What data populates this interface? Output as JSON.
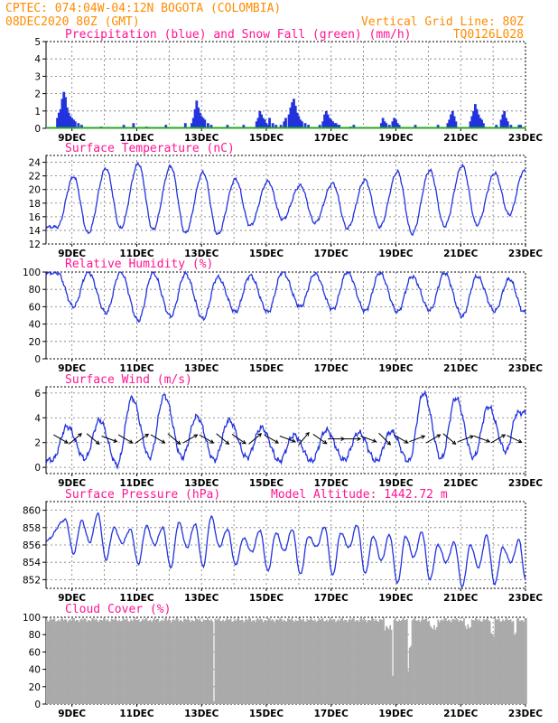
{
  "header": {
    "line1_left": "CPTEC:  074:04W-04:12N  BOGOTA (COLOMBIA)",
    "line2_left": "08DEC2020 80Z (GMT)",
    "line2_right": "Vertical Grid Line: 80Z",
    "line3_right": "TQ0126L028"
  },
  "colors": {
    "header": "#ff8c00",
    "title": "#ff1493",
    "line": "#2233dd",
    "precip": "#2233dd",
    "snow": "#22aa22",
    "cloud": "#aaaaaa"
  },
  "chart_data": [
    {
      "id": "precip",
      "type": "bar",
      "title": "Precipitation (blue) and Snow Fall (green) (mm/h)",
      "ylim": [
        0,
        5
      ],
      "yticks": [
        0,
        1,
        2,
        3,
        4,
        5
      ],
      "x_ticks": [
        "9DEC",
        "11DEC",
        "13DEC",
        "15DEC",
        "17DEC",
        "19DEC",
        "21DEC",
        "23DEC"
      ],
      "x_tick_days": [
        9,
        11,
        13,
        15,
        17,
        19,
        21,
        23
      ],
      "xlim_days": [
        8.2,
        23.0
      ],
      "series": [
        {
          "name": "Precipitation",
          "x": [
            8.55,
            8.6,
            8.65,
            8.7,
            8.75,
            8.8,
            8.85,
            8.9,
            8.95,
            9.0,
            9.05,
            9.1,
            9.2,
            9.3,
            9.9,
            10.6,
            10.9,
            11.3,
            11.9,
            12.5,
            12.7,
            12.75,
            12.8,
            12.85,
            12.9,
            12.95,
            13.0,
            13.05,
            13.1,
            13.2,
            13.3,
            13.8,
            14.3,
            14.7,
            14.75,
            14.8,
            14.85,
            14.9,
            14.95,
            15.0,
            15.05,
            15.1,
            15.2,
            15.3,
            15.45,
            15.55,
            15.6,
            15.7,
            15.75,
            15.8,
            15.85,
            15.9,
            15.95,
            16.0,
            16.05,
            16.1,
            16.2,
            16.3,
            16.65,
            16.75,
            16.8,
            16.85,
            16.9,
            16.95,
            17.0,
            17.05,
            17.1,
            17.15,
            17.2,
            17.25,
            17.6,
            17.7,
            18.55,
            18.6,
            18.65,
            18.7,
            18.8,
            18.9,
            18.95,
            19.0,
            19.05,
            19.1,
            19.6,
            20.3,
            20.6,
            20.65,
            20.7,
            20.75,
            20.8,
            20.85,
            21.3,
            21.35,
            21.4,
            21.45,
            21.5,
            21.55,
            21.6,
            21.65,
            21.7,
            22.1,
            22.25,
            22.3,
            22.35,
            22.4,
            22.45,
            22.55,
            22.8,
            22.85
          ],
          "values": [
            0.6,
            0.9,
            1.1,
            1.7,
            2.1,
            1.8,
            1.2,
            0.9,
            0.7,
            0.6,
            0.5,
            0.4,
            0.3,
            0.2,
            0.1,
            0.2,
            0.3,
            0.1,
            0.2,
            0.3,
            0.3,
            0.6,
            1.1,
            1.6,
            1.2,
            0.9,
            0.7,
            0.6,
            0.5,
            0.3,
            0.2,
            0.2,
            0.2,
            0.4,
            0.6,
            1.0,
            0.8,
            0.6,
            0.5,
            0.3,
            0.2,
            0.6,
            0.3,
            0.2,
            0.2,
            0.4,
            0.6,
            0.8,
            1.2,
            1.5,
            1.7,
            1.3,
            0.9,
            0.7,
            0.5,
            0.4,
            0.3,
            0.2,
            0.2,
            0.4,
            0.8,
            1.0,
            0.8,
            0.6,
            0.5,
            0.4,
            0.3,
            0.3,
            0.2,
            0.2,
            0.1,
            0.2,
            0.3,
            0.6,
            0.4,
            0.3,
            0.2,
            0.4,
            0.6,
            0.5,
            0.3,
            0.2,
            0.2,
            0.2,
            0.3,
            0.5,
            0.8,
            1.0,
            0.7,
            0.4,
            0.4,
            0.7,
            1.0,
            1.4,
            1.1,
            0.8,
            0.6,
            0.5,
            0.3,
            0.2,
            0.5,
            0.8,
            1.0,
            0.6,
            0.4,
            0.2,
            0.2,
            0.2
          ]
        },
        {
          "name": "Snow Fall",
          "values": [
            0
          ]
        }
      ]
    },
    {
      "id": "temperature",
      "type": "line",
      "title": "Surface Temperature (nC)",
      "ylim": [
        12,
        25
      ],
      "yticks": [
        12,
        14,
        16,
        18,
        20,
        22,
        24
      ],
      "x_ticks": [
        "9DEC",
        "11DEC",
        "13DEC",
        "15DEC",
        "17DEC",
        "19DEC",
        "21DEC",
        "23DEC"
      ],
      "xlim_days": [
        8.2,
        23.0
      ],
      "min_times": [
        8.55,
        9.5,
        10.5,
        11.5,
        12.5,
        13.5,
        14.5,
        15.5,
        16.5,
        17.5,
        18.5,
        19.5,
        20.5,
        21.5,
        22.5
      ],
      "min_values": [
        14.5,
        13.6,
        14.3,
        14.1,
        13.6,
        13.4,
        14.7,
        15.6,
        15.1,
        14.3,
        14.5,
        13.5,
        14.6,
        14.8,
        16.3
      ],
      "max_times": [
        9.05,
        10.05,
        11.05,
        12.05,
        13.05,
        14.05,
        15.05,
        16.05,
        17.05,
        18.05,
        19.05,
        20.05,
        21.05,
        22.05,
        22.95
      ],
      "max_values": [
        21.9,
        23.1,
        23.8,
        23.4,
        22.5,
        21.5,
        21.2,
        20.6,
        20.9,
        21.4,
        22.6,
        22.8,
        23.5,
        22.4,
        22.7
      ]
    },
    {
      "id": "humidity",
      "type": "line",
      "title": "Relative Humidity (%)",
      "ylim": [
        0,
        100
      ],
      "yticks": [
        0,
        20,
        40,
        60,
        80,
        100
      ],
      "x_ticks": [
        "9DEC",
        "11DEC",
        "13DEC",
        "15DEC",
        "17DEC",
        "19DEC",
        "21DEC",
        "23DEC"
      ],
      "xlim_days": [
        8.2,
        23.0
      ],
      "low_times": [
        9.05,
        10.05,
        11.05,
        12.05,
        13.05,
        14.05,
        15.05,
        16.05,
        17.05,
        18.05,
        19.05,
        20.05,
        21.05,
        22.05,
        22.95
      ],
      "low_values": [
        60,
        53,
        44,
        49,
        46,
        54,
        54,
        60,
        57,
        55,
        54,
        56,
        49,
        55,
        54
      ],
      "high_times": [
        8.55,
        9.5,
        10.5,
        11.5,
        12.5,
        13.5,
        14.5,
        15.5,
        16.5,
        17.5,
        18.5,
        19.5,
        20.5,
        21.5,
        22.5
      ],
      "high_values": [
        99,
        100,
        100,
        99,
        98,
        94,
        96,
        100,
        98,
        100,
        99,
        95,
        99,
        95,
        92
      ]
    },
    {
      "id": "wind",
      "type": "line",
      "title": "Surface Wind (m/s)",
      "ylim": [
        -0.5,
        6.5
      ],
      "yticks": [
        0,
        2,
        4,
        6
      ],
      "x_ticks": [
        "9DEC",
        "11DEC",
        "13DEC",
        "15DEC",
        "17DEC",
        "19DEC",
        "21DEC",
        "23DEC"
      ],
      "xlim_days": [
        8.2,
        23.0
      ],
      "peak_times": [
        8.85,
        9.85,
        10.85,
        11.85,
        12.85,
        13.85,
        14.85,
        15.85,
        16.85,
        17.85,
        18.85,
        19.85,
        20.85,
        21.85,
        22.75
      ],
      "peak_values": [
        3.3,
        3.8,
        5.6,
        5.8,
        4.1,
        3.8,
        3.2,
        2.6,
        3.0,
        2.8,
        2.9,
        6.0,
        5.6,
        4.9,
        4.4
      ],
      "trough_times": [
        8.4,
        9.4,
        10.4,
        11.4,
        12.4,
        13.4,
        14.4,
        15.4,
        16.4,
        17.4,
        18.4,
        19.4,
        20.4,
        21.4,
        22.4
      ],
      "trough_values": [
        0.6,
        0.7,
        0.2,
        0.8,
        0.8,
        0.6,
        0.8,
        0.5,
        0.5,
        0.6,
        0.5,
        0.5,
        0.7,
        0.8,
        1.3
      ],
      "arrow_days": [
        8.65,
        9.1,
        9.65,
        10.15,
        10.65,
        11.15,
        11.65,
        12.15,
        12.65,
        13.15,
        13.65,
        14.15,
        14.65,
        15.15,
        15.65,
        16.15,
        16.65,
        17.15,
        17.65,
        18.15,
        18.65,
        19.15,
        19.65,
        20.15,
        20.65,
        21.15,
        21.65,
        22.15,
        22.65
      ],
      "arrow_angles_deg": [
        30,
        -40,
        40,
        20,
        30,
        -35,
        30,
        40,
        -30,
        30,
        40,
        35,
        -40,
        30,
        20,
        -50,
        35,
        0,
        0,
        20,
        45,
        30,
        -20,
        -30,
        40,
        -20,
        20,
        -30,
        25
      ]
    },
    {
      "id": "pressure",
      "type": "line",
      "title": "Surface Pressure (hPa)",
      "annotation": "Model Altitude: 1442.72 m",
      "ylim": [
        851,
        861
      ],
      "yticks": [
        852,
        854,
        856,
        858,
        860
      ],
      "x_ticks": [
        "9DEC",
        "11DEC",
        "13DEC",
        "15DEC",
        "17DEC",
        "19DEC",
        "21DEC",
        "23DEC"
      ],
      "xlim_days": [
        8.2,
        23.0
      ],
      "start_value": 856.5,
      "hi_times": [
        8.8,
        9.3,
        9.8,
        10.3,
        10.8,
        11.3,
        11.8,
        12.3,
        12.8,
        13.3,
        13.8,
        14.3,
        14.8,
        15.3,
        15.8,
        16.3,
        16.8,
        17.3,
        17.8,
        18.3,
        18.8,
        19.3,
        19.8,
        20.3,
        20.8,
        21.3,
        21.8,
        22.3,
        22.8
      ],
      "hi_values": [
        858.9,
        858.8,
        859.6,
        858.0,
        857.8,
        858.2,
        858.0,
        858.6,
        858.4,
        859.3,
        857.8,
        856.8,
        857.7,
        857.4,
        857.8,
        857.0,
        858.1,
        857.4,
        858.3,
        857.0,
        857.2,
        857.0,
        857.5,
        856.0,
        856.3,
        856.0,
        857.1,
        855.7,
        856.6
      ],
      "lo_times": [
        9.05,
        9.55,
        10.05,
        10.55,
        11.05,
        11.55,
        12.05,
        12.55,
        13.05,
        13.55,
        14.05,
        14.55,
        15.05,
        15.55,
        16.05,
        16.55,
        17.05,
        17.55,
        18.05,
        18.55,
        19.05,
        19.55,
        20.05,
        20.55,
        21.05,
        21.55,
        22.05,
        22.55,
        23.0
      ],
      "lo_values": [
        855.0,
        856.3,
        854.3,
        856.2,
        853.8,
        856.0,
        853.4,
        855.7,
        853.5,
        855.8,
        853.7,
        855.2,
        853.0,
        855.3,
        852.6,
        855.8,
        852.5,
        855.7,
        852.7,
        854.2,
        851.6,
        854.6,
        852.0,
        854.0,
        851.2,
        853.4,
        851.5,
        854.0,
        852.0
      ]
    },
    {
      "id": "cloud",
      "type": "area",
      "title": "Cloud Cover (%)",
      "ylim": [
        0,
        100
      ],
      "yticks": [
        0,
        20,
        40,
        60,
        80,
        100
      ],
      "x_ticks": [
        "9DEC",
        "11DEC",
        "13DEC",
        "15DEC",
        "17DEC",
        "19DEC",
        "21DEC",
        "23DEC"
      ],
      "xlim_days": [
        8.2,
        23.0
      ],
      "base_value": 97,
      "dips": [
        {
          "day": 13.35,
          "value": 0,
          "width": 0.03
        },
        {
          "day": 18.75,
          "value": 88,
          "width": 0.25
        },
        {
          "day": 18.88,
          "value": 32,
          "width": 0.04
        },
        {
          "day": 19.35,
          "value": 40,
          "width": 0.05
        },
        {
          "day": 19.42,
          "value": 65,
          "width": 0.1
        },
        {
          "day": 20.15,
          "value": 88,
          "width": 0.25
        },
        {
          "day": 21.2,
          "value": 89,
          "width": 0.2
        },
        {
          "day": 21.95,
          "value": 80,
          "width": 0.1
        },
        {
          "day": 22.65,
          "value": 80,
          "width": 0.1
        }
      ]
    }
  ]
}
